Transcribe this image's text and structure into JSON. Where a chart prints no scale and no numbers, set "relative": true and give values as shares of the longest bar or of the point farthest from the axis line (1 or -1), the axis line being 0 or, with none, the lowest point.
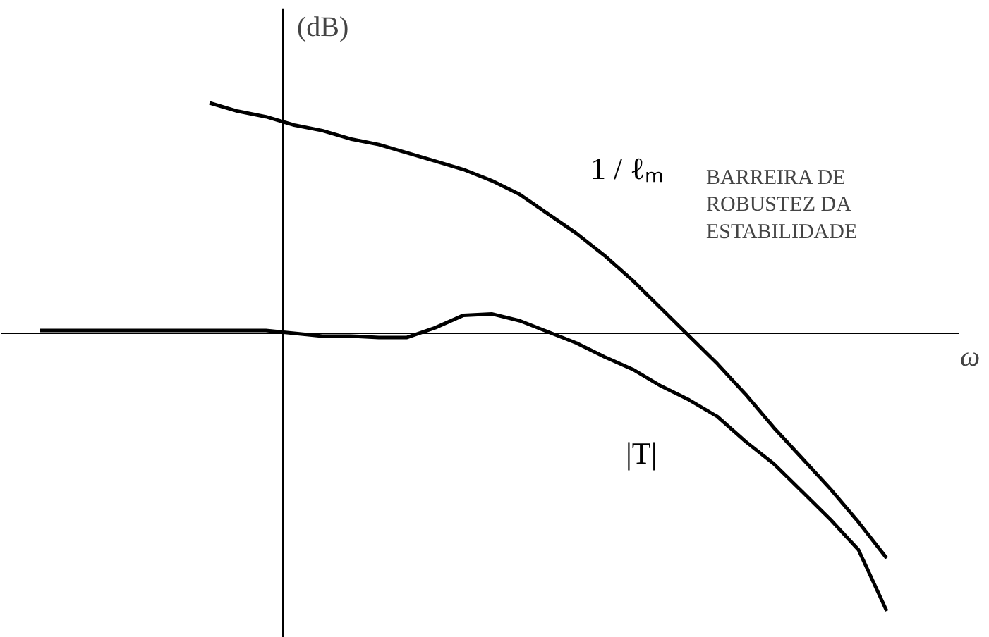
{
  "chart_data": {
    "type": "line",
    "relative": true,
    "xlabel": "ω",
    "ylabel": "(dB)",
    "categories": [
      null,
      null,
      null,
      null,
      null,
      null,
      null,
      null,
      null,
      null,
      null,
      null,
      null,
      null,
      null,
      null,
      null,
      null,
      null,
      null,
      null,
      null,
      null,
      null,
      null,
      null,
      null,
      null,
      null,
      null,
      null,
      null
    ],
    "series": [
      {
        "name": "1 / ℓₘ",
        "color": "#000000",
        "values": [
          null,
          null,
          null,
          null,
          null,
          null,
          0.83,
          0.8,
          0.78,
          0.75,
          0.73,
          0.7,
          0.68,
          0.65,
          0.62,
          0.59,
          0.55,
          0.5,
          0.43,
          0.36,
          0.28,
          0.19,
          0.09,
          -0.01,
          -0.11,
          -0.22,
          -0.34,
          -0.45,
          -0.56,
          -0.68,
          -0.81,
          null
        ]
      },
      {
        "name": "|T|",
        "color": "#000000",
        "values": [
          0.01,
          0.01,
          0.01,
          0.01,
          0.01,
          0.01,
          0.01,
          0.01,
          0.01,
          0.0,
          -0.01,
          -0.01,
          -0.015,
          -0.015,
          0.02,
          0.065,
          0.07,
          0.045,
          0.005,
          -0.035,
          -0.085,
          -0.13,
          -0.19,
          -0.24,
          -0.3,
          -0.39,
          -0.47,
          -0.57,
          -0.67,
          -0.78,
          -1.0,
          null
        ]
      }
    ],
    "annotations": [
      "BARREIRA DE\nROBUSTEZ DA\nESTABILIDADE"
    ],
    "grid": false,
    "legend": false,
    "marker": "none",
    "line_style": "solid"
  }
}
